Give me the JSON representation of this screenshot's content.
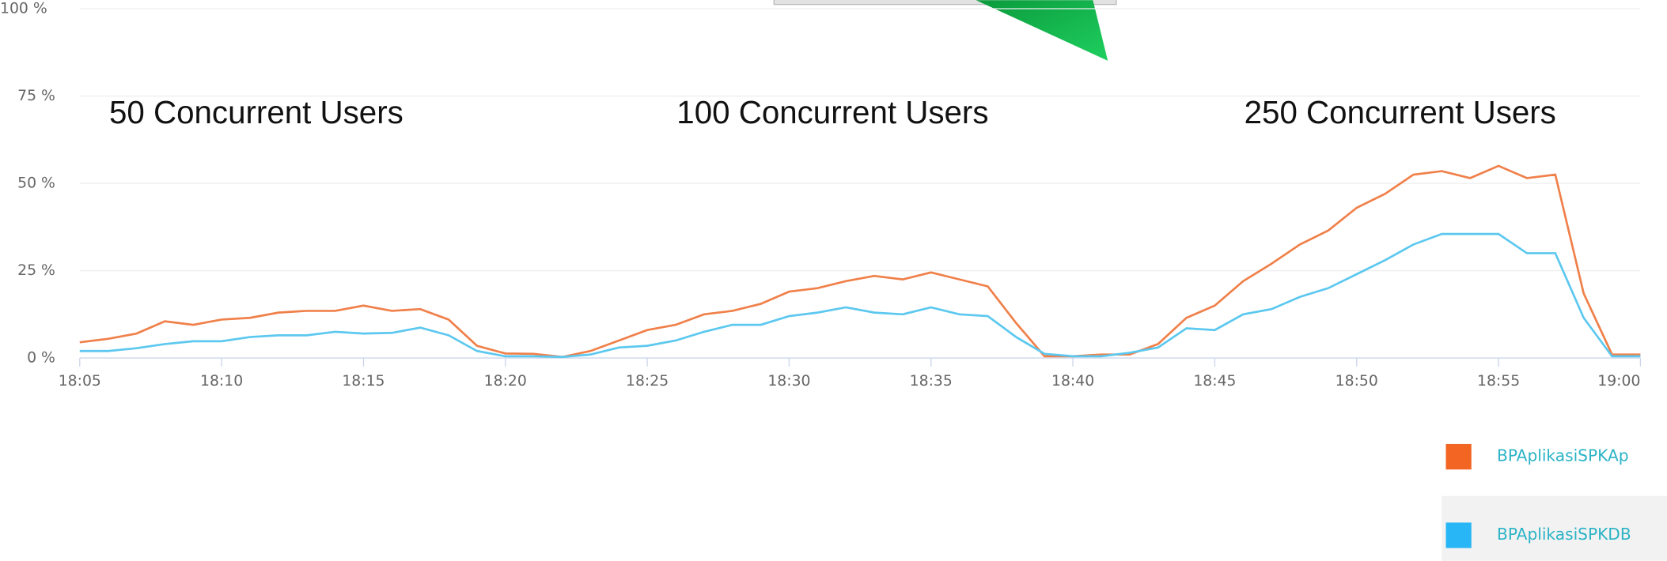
{
  "chart_data": {
    "type": "line",
    "x": [
      "18:05",
      "18:06",
      "18:07",
      "18:08",
      "18:09",
      "18:10",
      "18:11",
      "18:12",
      "18:13",
      "18:14",
      "18:15",
      "18:16",
      "18:17",
      "18:18",
      "18:19",
      "18:20",
      "18:21",
      "18:22",
      "18:23",
      "18:24",
      "18:25",
      "18:26",
      "18:27",
      "18:28",
      "18:29",
      "18:30",
      "18:31",
      "18:32",
      "18:33",
      "18:34",
      "18:35",
      "18:36",
      "18:37",
      "18:38",
      "18:39",
      "18:40",
      "18:41",
      "18:42",
      "18:43",
      "18:44",
      "18:45",
      "18:46",
      "18:47",
      "18:48",
      "18:49",
      "18:50",
      "18:51",
      "18:52",
      "18:53",
      "18:54",
      "18:55",
      "18:56",
      "18:57",
      "18:58",
      "18:59",
      "19:00"
    ],
    "series": [
      {
        "name": "BPAplikasiSPKAp",
        "color": "#f0804a",
        "legend_color": "#f26522",
        "values": [
          4.5,
          5.5,
          7,
          10.5,
          9.5,
          11,
          11.5,
          13,
          13.5,
          13.5,
          15,
          13.5,
          14,
          11,
          3.5,
          1.3,
          1.2,
          0.3,
          2,
          5,
          8,
          9.5,
          12.5,
          13.5,
          15.5,
          19,
          20,
          22,
          23.5,
          22.5,
          24.5,
          22.5,
          20.5,
          10,
          0.5,
          0.5,
          1,
          1,
          4,
          11.5,
          15,
          22,
          27,
          32.5,
          36.5,
          43,
          47,
          52.5,
          53.5,
          51.5,
          55,
          51.5,
          52.5,
          18.5,
          1,
          1
        ]
      },
      {
        "name": "BPAplikasiSPKDB",
        "color": "#5cc8ef",
        "legend_color": "#29b6f6",
        "values": [
          2,
          2,
          2.8,
          4,
          4.8,
          4.8,
          6,
          6.5,
          6.5,
          7.5,
          7,
          7.2,
          8.7,
          6.5,
          2,
          0.5,
          0.5,
          0.3,
          1,
          3,
          3.5,
          5,
          7.5,
          9.5,
          9.5,
          12,
          13,
          14.5,
          13,
          12.5,
          14.5,
          12.5,
          12,
          6,
          1.2,
          0.5,
          0.5,
          1.5,
          3,
          8.5,
          8,
          12.5,
          14,
          17.5,
          20,
          24,
          28,
          32.5,
          35.5,
          35.5,
          35.5,
          30,
          30,
          11.5,
          0.5,
          0.5
        ]
      }
    ],
    "xlim": [
      "18:05",
      "19:00"
    ],
    "xticks": [
      "18:05",
      "18:10",
      "18:15",
      "18:20",
      "18:25",
      "18:30",
      "18:35",
      "18:40",
      "18:45",
      "18:50",
      "18:55",
      "19:00"
    ],
    "ylim": [
      0,
      100
    ],
    "yticks": [
      {
        "value": 0,
        "label": "0 %"
      },
      {
        "value": 25,
        "label": "25 %"
      },
      {
        "value": 50,
        "label": "50 %"
      },
      {
        "value": 75,
        "label": "75 %"
      },
      {
        "value": 100,
        "label": "100 %"
      }
    ],
    "grid": true,
    "legend": "bottom-right",
    "annotations": [
      {
        "text": "50 Concurrent Users",
        "x": "18:06"
      },
      {
        "text": "100 Concurrent Users",
        "x": "18:26"
      },
      {
        "text": "250 Concurrent Users",
        "x": "18:46"
      }
    ]
  }
}
